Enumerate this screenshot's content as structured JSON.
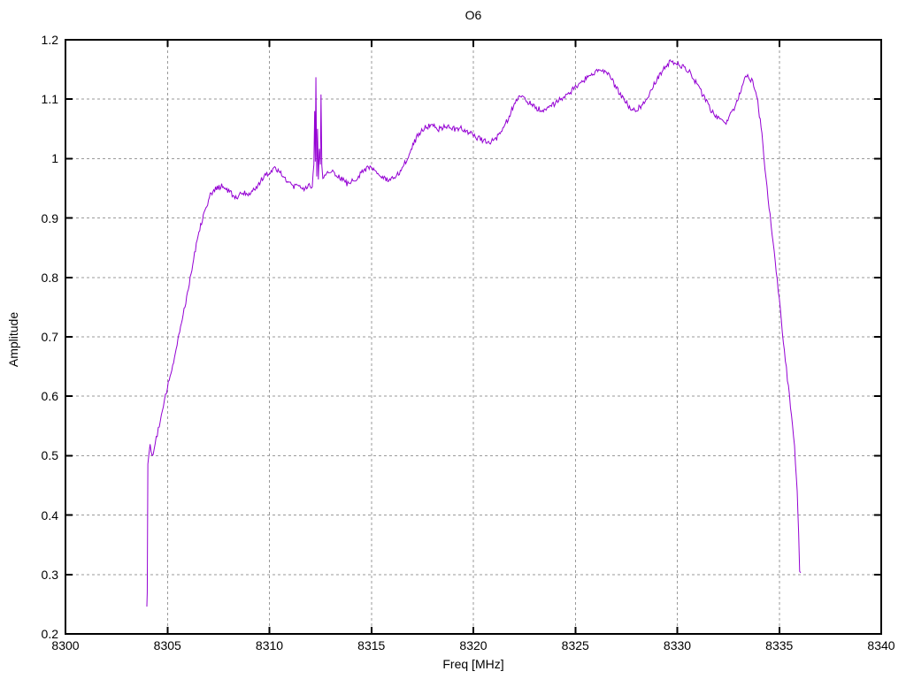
{
  "chart_data": {
    "type": "line",
    "title": "O6",
    "xlabel": "Freq [MHz]",
    "ylabel": "Amplitude",
    "xlim": [
      8300,
      8340
    ],
    "ylim": [
      0.2,
      1.2
    ],
    "grid": true,
    "legend": "none",
    "x_ticks": [
      {
        "v": 8300,
        "label": "8300"
      },
      {
        "v": 8305,
        "label": "8305"
      },
      {
        "v": 8310,
        "label": "8310"
      },
      {
        "v": 8315,
        "label": "8315"
      },
      {
        "v": 8320,
        "label": "8320"
      },
      {
        "v": 8325,
        "label": "8325"
      },
      {
        "v": 8330,
        "label": "8330"
      },
      {
        "v": 8335,
        "label": "8335"
      },
      {
        "v": 8340,
        "label": "8340"
      }
    ],
    "y_ticks": [
      {
        "v": 0.2,
        "label": "0.2"
      },
      {
        "v": 0.3,
        "label": "0.3"
      },
      {
        "v": 0.4,
        "label": "0.4"
      },
      {
        "v": 0.5,
        "label": "0.5"
      },
      {
        "v": 0.6,
        "label": "0.6"
      },
      {
        "v": 0.7,
        "label": "0.7"
      },
      {
        "v": 0.8,
        "label": "0.8"
      },
      {
        "v": 0.9,
        "label": "0.9"
      },
      {
        "v": 1.0,
        "label": "1"
      },
      {
        "v": 1.1,
        "label": "1.1"
      },
      {
        "v": 1.2,
        "label": "1.2"
      }
    ],
    "colors": {
      "line": "#9400d3",
      "grid": "#9a9a9a",
      "frame": "#000000",
      "text": "#000000"
    },
    "noise": {
      "seed": 12,
      "amplitude": 0.0048,
      "step_mhz": 0.045
    },
    "series": [
      {
        "name": "O6 passband response",
        "color": "#9400d3",
        "points": [
          [
            8303.99,
            0.248
          ],
          [
            8304.01,
            0.27
          ],
          [
            8304.04,
            0.49
          ],
          [
            8304.15,
            0.515
          ],
          [
            8304.3,
            0.5
          ],
          [
            8304.45,
            0.53
          ],
          [
            8304.6,
            0.55
          ],
          [
            8304.8,
            0.582
          ],
          [
            8305.0,
            0.615
          ],
          [
            8305.3,
            0.66
          ],
          [
            8305.6,
            0.71
          ],
          [
            8305.9,
            0.76
          ],
          [
            8306.2,
            0.815
          ],
          [
            8306.5,
            0.872
          ],
          [
            8306.8,
            0.91
          ],
          [
            8307.1,
            0.938
          ],
          [
            8307.4,
            0.95
          ],
          [
            8307.7,
            0.954
          ],
          [
            8308.0,
            0.945
          ],
          [
            8308.35,
            0.934
          ],
          [
            8308.7,
            0.944
          ],
          [
            8309.0,
            0.94
          ],
          [
            8309.35,
            0.952
          ],
          [
            8309.7,
            0.968
          ],
          [
            8310.0,
            0.978
          ],
          [
            8310.3,
            0.985
          ],
          [
            8310.6,
            0.975
          ],
          [
            8310.9,
            0.962
          ],
          [
            8311.2,
            0.952
          ],
          [
            8311.45,
            0.958
          ],
          [
            8311.7,
            0.946
          ],
          [
            8311.95,
            0.955
          ],
          [
            8312.1,
            0.955
          ],
          [
            8312.18,
            0.99
          ],
          [
            8312.22,
            1.08
          ],
          [
            8312.25,
            0.995
          ],
          [
            8312.28,
            1.137
          ],
          [
            8312.32,
            0.97
          ],
          [
            8312.36,
            1.05
          ],
          [
            8312.4,
            0.965
          ],
          [
            8312.45,
            1.02
          ],
          [
            8312.5,
            0.99
          ],
          [
            8312.53,
            1.108
          ],
          [
            8312.57,
            0.99
          ],
          [
            8312.62,
            0.965
          ],
          [
            8312.75,
            0.972
          ],
          [
            8312.9,
            0.976
          ],
          [
            8313.1,
            0.978
          ],
          [
            8313.45,
            0.968
          ],
          [
            8313.8,
            0.958
          ],
          [
            8314.1,
            0.962
          ],
          [
            8314.5,
            0.976
          ],
          [
            8314.85,
            0.987
          ],
          [
            8315.15,
            0.98
          ],
          [
            8315.5,
            0.969
          ],
          [
            8315.85,
            0.962
          ],
          [
            8316.2,
            0.968
          ],
          [
            8316.55,
            0.986
          ],
          [
            8316.9,
            1.012
          ],
          [
            8317.25,
            1.038
          ],
          [
            8317.6,
            1.052
          ],
          [
            8317.95,
            1.057
          ],
          [
            8318.3,
            1.05
          ],
          [
            8318.65,
            1.054
          ],
          [
            8319.0,
            1.05
          ],
          [
            8319.35,
            1.051
          ],
          [
            8319.7,
            1.046
          ],
          [
            8320.05,
            1.038
          ],
          [
            8320.4,
            1.032
          ],
          [
            8320.75,
            1.028
          ],
          [
            8321.1,
            1.033
          ],
          [
            8321.45,
            1.048
          ],
          [
            8321.8,
            1.075
          ],
          [
            8322.1,
            1.098
          ],
          [
            8322.35,
            1.105
          ],
          [
            8322.65,
            1.097
          ],
          [
            8322.95,
            1.088
          ],
          [
            8323.35,
            1.081
          ],
          [
            8323.7,
            1.085
          ],
          [
            8324.05,
            1.094
          ],
          [
            8324.4,
            1.103
          ],
          [
            8324.75,
            1.112
          ],
          [
            8325.1,
            1.122
          ],
          [
            8325.45,
            1.133
          ],
          [
            8325.8,
            1.143
          ],
          [
            8326.1,
            1.149
          ],
          [
            8326.4,
            1.147
          ],
          [
            8326.7,
            1.137
          ],
          [
            8327.0,
            1.12
          ],
          [
            8327.35,
            1.101
          ],
          [
            8327.7,
            1.085
          ],
          [
            8327.95,
            1.081
          ],
          [
            8328.25,
            1.09
          ],
          [
            8328.6,
            1.108
          ],
          [
            8328.95,
            1.13
          ],
          [
            8329.3,
            1.15
          ],
          [
            8329.65,
            1.163
          ],
          [
            8329.95,
            1.162
          ],
          [
            8330.25,
            1.155
          ],
          [
            8330.6,
            1.145
          ],
          [
            8330.95,
            1.127
          ],
          [
            8331.3,
            1.104
          ],
          [
            8331.65,
            1.082
          ],
          [
            8332.0,
            1.068
          ],
          [
            8332.35,
            1.06
          ],
          [
            8332.7,
            1.078
          ],
          [
            8333.0,
            1.105
          ],
          [
            8333.3,
            1.133
          ],
          [
            8333.5,
            1.14
          ],
          [
            8333.7,
            1.127
          ],
          [
            8333.9,
            1.108
          ],
          [
            8334.15,
            1.04
          ],
          [
            8334.35,
            0.965
          ],
          [
            8334.55,
            0.905
          ],
          [
            8334.75,
            0.845
          ],
          [
            8334.95,
            0.78
          ],
          [
            8335.15,
            0.71
          ],
          [
            8335.35,
            0.645
          ],
          [
            8335.55,
            0.585
          ],
          [
            8335.75,
            0.515
          ],
          [
            8335.88,
            0.44
          ],
          [
            8335.95,
            0.37
          ],
          [
            8336.0,
            0.31
          ],
          [
            8336.05,
            0.303
          ]
        ]
      }
    ]
  }
}
